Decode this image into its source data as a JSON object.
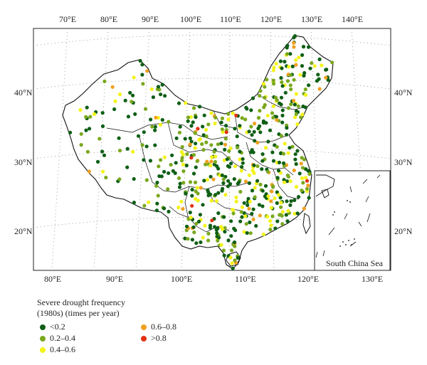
{
  "map": {
    "top_longitude_labels": [
      "70°E",
      "80°E",
      "90°E",
      "100°E",
      "110°E",
      "120°E",
      "130°E",
      "140°E"
    ],
    "bottom_longitude_labels": [
      "80°E",
      "90°E",
      "100°E",
      "110°E",
      "120°E",
      "130°E"
    ],
    "latitude_labels": [
      "40°N",
      "30°N",
      "20°N"
    ],
    "inset_label": "South China Sea"
  },
  "legend": {
    "title_line1": "Severe drought frequency",
    "title_line2": "(1980s) (times per year)",
    "classes": [
      {
        "label": "<0.2",
        "color": "#0f5f16"
      },
      {
        "label": "0.2–0.4",
        "color": "#7aa81e"
      },
      {
        "label": "0.4–0.6",
        "color": "#f3f31b"
      },
      {
        "label": "0.6–0.8",
        "color": "#f0a020"
      },
      {
        "label": ">0.8",
        "color": "#e23214"
      }
    ]
  },
  "colors": {
    "frame": "#222222",
    "border": "#111111",
    "graticule": "#888888"
  }
}
